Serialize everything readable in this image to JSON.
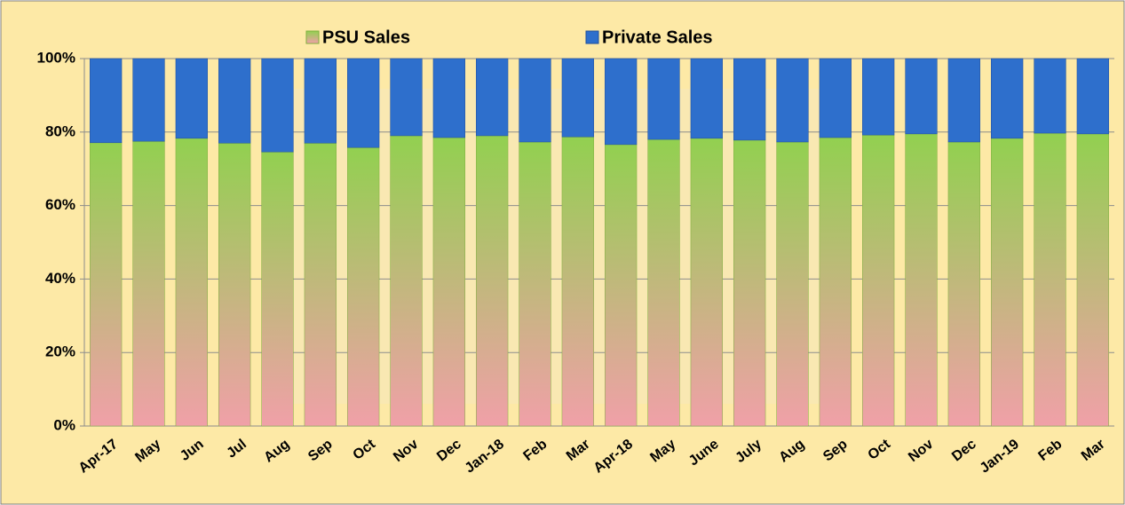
{
  "chart_data": {
    "type": "stacked-bar-100",
    "categories": [
      "Apr-17",
      "May",
      "Jun",
      "Jul",
      "Aug",
      "Sep",
      "Oct",
      "Nov",
      "Dec",
      "Jan-18",
      "Feb",
      "Mar",
      "Apr-18",
      "May",
      "June",
      "July",
      "Aug",
      "Sep",
      "Oct",
      "Nov",
      "Dec",
      "Jan-19",
      "Feb",
      "Mar"
    ],
    "series": [
      {
        "name": "PSU Sales",
        "color": "#92d050",
        "values": [
          77.1,
          77.5,
          78.3,
          77,
          74.6,
          77,
          75.8,
          79,
          78.5,
          79,
          77.3,
          78.7,
          76.6,
          78,
          78.3,
          77.8,
          77.3,
          78.5,
          79.2,
          79.5,
          77.3,
          78.3,
          79.7,
          79.5
        ]
      },
      {
        "name": "Private Sales",
        "color": "#2e6fcc",
        "values": [
          22.9,
          22.5,
          21.7,
          23,
          25.4,
          23,
          24.2,
          21,
          21.5,
          21,
          22.7,
          21.3,
          23.4,
          22,
          21.7,
          22.2,
          22.7,
          21.5,
          20.8,
          20.5,
          22.7,
          21.7,
          20.3,
          20.5
        ]
      }
    ],
    "ylim": [
      0,
      100
    ],
    "yticks": [
      {
        "value": 0,
        "label": "0%"
      },
      {
        "value": 20,
        "label": "20%"
      },
      {
        "value": 40,
        "label": "40%"
      },
      {
        "value": 60,
        "label": "60%"
      },
      {
        "value": 80,
        "label": "80%"
      },
      {
        "value": 100,
        "label": "100%"
      }
    ],
    "grid": true,
    "legend": "top"
  }
}
